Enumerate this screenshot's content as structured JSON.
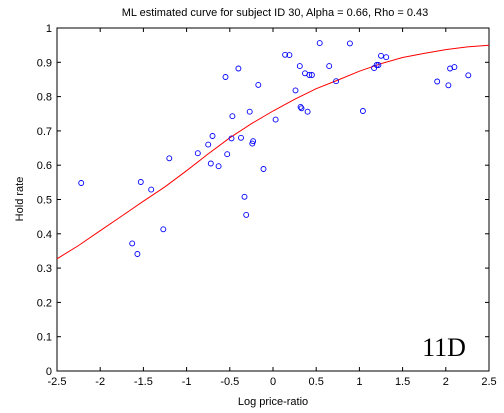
{
  "chart_data": {
    "type": "scatter",
    "title": "ML estimated curve for subject ID 30,   Alpha = 0.66,   Rho = 0.43",
    "xlabel": "Log price-ratio",
    "ylabel": "Hold rate",
    "xlim": [
      -2.5,
      2.5
    ],
    "ylim": [
      0,
      1
    ],
    "xticks": [
      "-2.5",
      "-2",
      "-1.5",
      "-1",
      "-0.5",
      "0",
      "0.5",
      "1",
      "1.5",
      "2",
      "2.5"
    ],
    "yticks": [
      "0",
      "0.1",
      "0.2",
      "0.3",
      "0.4",
      "0.5",
      "0.6",
      "0.7",
      "0.8",
      "0.9",
      "1"
    ],
    "annotation": "11D",
    "grid": false,
    "colors": {
      "points": "#0000ff",
      "curve": "#ff0000"
    },
    "points": {
      "x": [
        -2.22,
        -1.63,
        -1.57,
        -1.53,
        -1.41,
        -1.27,
        -1.2,
        -0.87,
        -0.75,
        -0.72,
        -0.7,
        -0.63,
        -0.55,
        -0.53,
        -0.48,
        -0.47,
        -0.4,
        -0.37,
        -0.33,
        -0.31,
        -0.27,
        -0.24,
        -0.23,
        -0.17,
        -0.11,
        0.03,
        0.14,
        0.19,
        0.26,
        0.31,
        0.32,
        0.33,
        0.37,
        0.4,
        0.42,
        0.45,
        0.54,
        0.65,
        0.73,
        0.89,
        1.04,
        1.17,
        1.2,
        1.22,
        1.25,
        1.31,
        1.9,
        2.03,
        2.05,
        2.1,
        2.26
      ],
      "y": [
        0.548,
        0.372,
        0.341,
        0.551,
        0.529,
        0.413,
        0.62,
        0.635,
        0.66,
        0.605,
        0.685,
        0.597,
        0.857,
        0.632,
        0.678,
        0.743,
        0.882,
        0.68,
        0.508,
        0.455,
        0.756,
        0.663,
        0.67,
        0.834,
        0.589,
        0.733,
        0.922,
        0.921,
        0.818,
        0.889,
        0.77,
        0.766,
        0.868,
        0.756,
        0.863,
        0.863,
        0.956,
        0.889,
        0.845,
        0.955,
        0.758,
        0.883,
        0.892,
        0.892,
        0.919,
        0.915,
        0.844,
        0.833,
        0.882,
        0.886,
        0.862
      ]
    },
    "curve": {
      "name": "ML estimated curve",
      "x": [
        -2.5,
        -2.25,
        -2.0,
        -1.75,
        -1.5,
        -1.25,
        -1.0,
        -0.75,
        -0.5,
        -0.25,
        0,
        0.25,
        0.5,
        0.75,
        1.0,
        1.25,
        1.5,
        1.75,
        2.0,
        2.25,
        2.5
      ],
      "y": [
        0.327,
        0.366,
        0.409,
        0.452,
        0.495,
        0.537,
        0.584,
        0.633,
        0.68,
        0.721,
        0.758,
        0.792,
        0.823,
        0.848,
        0.874,
        0.896,
        0.914,
        0.926,
        0.937,
        0.945,
        0.95
      ]
    }
  }
}
